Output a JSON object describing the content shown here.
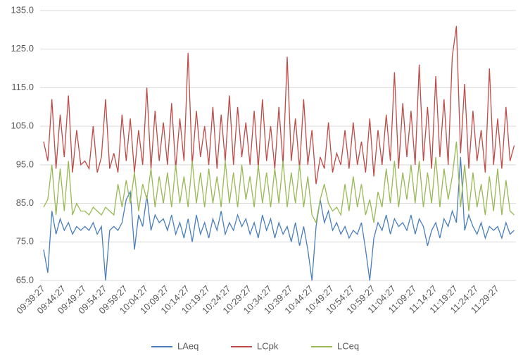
{
  "chart_data": {
    "type": "line",
    "categories": [
      "09:39:27",
      null,
      null,
      null,
      null,
      "09:44:27",
      null,
      null,
      null,
      null,
      "09:49:27",
      null,
      null,
      null,
      null,
      "09:54:27",
      null,
      null,
      null,
      null,
      "09:59:27",
      null,
      null,
      null,
      null,
      "10:04:27",
      null,
      null,
      null,
      null,
      "10:09:27",
      null,
      null,
      null,
      null,
      "10:14:27",
      null,
      null,
      null,
      null,
      "10:19:27",
      null,
      null,
      null,
      null,
      "10:24:27",
      null,
      null,
      null,
      null,
      "10:29:27",
      null,
      null,
      null,
      null,
      "10:34:27",
      null,
      null,
      null,
      null,
      "10:39:27",
      null,
      null,
      null,
      null,
      "10:44:27",
      null,
      null,
      null,
      null,
      "10:49:27",
      null,
      null,
      null,
      null,
      "10:54:27",
      null,
      null,
      null,
      null,
      "10:59:27",
      null,
      null,
      null,
      null,
      "11:04:27",
      null,
      null,
      null,
      null,
      "11:09:27",
      null,
      null,
      null,
      null,
      "11:14:27",
      null,
      null,
      null,
      null,
      "11:19:27",
      null,
      null,
      null,
      null,
      "11:24:27",
      null,
      null,
      null,
      null,
      "11:29:27",
      null,
      null,
      null,
      null
    ],
    "series": [
      {
        "name": "LAeq",
        "color": "#4a7ebb",
        "values": [
          73,
          67,
          83,
          77,
          81,
          78,
          80,
          77,
          79,
          78,
          79,
          78,
          80,
          77,
          79,
          65,
          78,
          79,
          78,
          80,
          86,
          88,
          73,
          82,
          79,
          87,
          78,
          82,
          80,
          81,
          78,
          82,
          77,
          80,
          76,
          81,
          75,
          82,
          77,
          80,
          76,
          81,
          78,
          83,
          77,
          80,
          78,
          82,
          79,
          81,
          77,
          80,
          76,
          82,
          78,
          81,
          76,
          80,
          77,
          79,
          75,
          80,
          74,
          79,
          73,
          65,
          79,
          86,
          80,
          83,
          78,
          80,
          77,
          79,
          76,
          78,
          77,
          80,
          73,
          65,
          76,
          80,
          78,
          82,
          77,
          81,
          79,
          80,
          78,
          82,
          77,
          81,
          79,
          74,
          78,
          80,
          76,
          81,
          79,
          83,
          80,
          97,
          78,
          82,
          79,
          77,
          80,
          76,
          79,
          78,
          79,
          76,
          80,
          77,
          78
        ]
      },
      {
        "name": "LCpk",
        "color": "#be4b48",
        "values": [
          101,
          96,
          112,
          94,
          108,
          97,
          113,
          93,
          104,
          95,
          96,
          94,
          105,
          93,
          97,
          112,
          94,
          98,
          93,
          108,
          96,
          107,
          93,
          104,
          95,
          115,
          94,
          109,
          96,
          106,
          95,
          111,
          94,
          107,
          96,
          124,
          95,
          109,
          97,
          105,
          95,
          110,
          94,
          108,
          96,
          113,
          95,
          110,
          97,
          106,
          95,
          109,
          94,
          112,
          96,
          105,
          94,
          110,
          95,
          123,
          96,
          107,
          94,
          112,
          95,
          104,
          90,
          97,
          94,
          106,
          93,
          98,
          95,
          104,
          94,
          106,
          95,
          101,
          93,
          107,
          92,
          104,
          95,
          108,
          96,
          119,
          94,
          111,
          97,
          109,
          95,
          121,
          96,
          110,
          94,
          118,
          97,
          112,
          95,
          123,
          131,
          98,
          116,
          94,
          109,
          96,
          104,
          93,
          120,
          95,
          107,
          94,
          110,
          96,
          100
        ]
      },
      {
        "name": "LCeq",
        "color": "#98b954",
        "values": [
          84,
          86,
          95,
          82,
          94,
          83,
          96,
          82,
          85,
          83,
          83,
          82,
          84,
          83,
          82,
          84,
          83,
          82,
          90,
          84,
          91,
          85,
          93,
          83,
          90,
          86,
          94,
          84,
          92,
          85,
          93,
          84,
          95,
          85,
          92,
          84,
          96,
          85,
          93,
          84,
          94,
          85,
          92,
          84,
          96,
          85,
          93,
          84,
          95,
          86,
          92,
          84,
          95,
          85,
          93,
          84,
          94,
          85,
          96,
          84,
          93,
          85,
          95,
          84,
          92,
          82,
          80,
          86,
          90,
          85,
          83,
          84,
          82,
          90,
          83,
          92,
          84,
          90,
          82,
          86,
          80,
          88,
          84,
          94,
          85,
          96,
          84,
          93,
          86,
          95,
          85,
          96,
          84,
          93,
          85,
          97,
          84,
          94,
          86,
          92,
          101,
          84,
          95,
          83,
          93,
          84,
          90,
          82,
          92,
          83,
          94,
          82,
          91,
          83,
          82
        ]
      }
    ],
    "ylim": [
      65,
      135
    ],
    "yticks": [
      {
        "value": 65,
        "label": "65.0"
      },
      {
        "value": 75,
        "label": "75.0"
      },
      {
        "value": 85,
        "label": "85.0"
      },
      {
        "value": 95,
        "label": "95.0"
      },
      {
        "value": 105,
        "label": "105.0"
      },
      {
        "value": 115,
        "label": "115.0"
      },
      {
        "value": 125,
        "label": "125.0"
      },
      {
        "value": 135,
        "label": "135.0"
      }
    ],
    "grid": true,
    "legend": "bottom"
  }
}
